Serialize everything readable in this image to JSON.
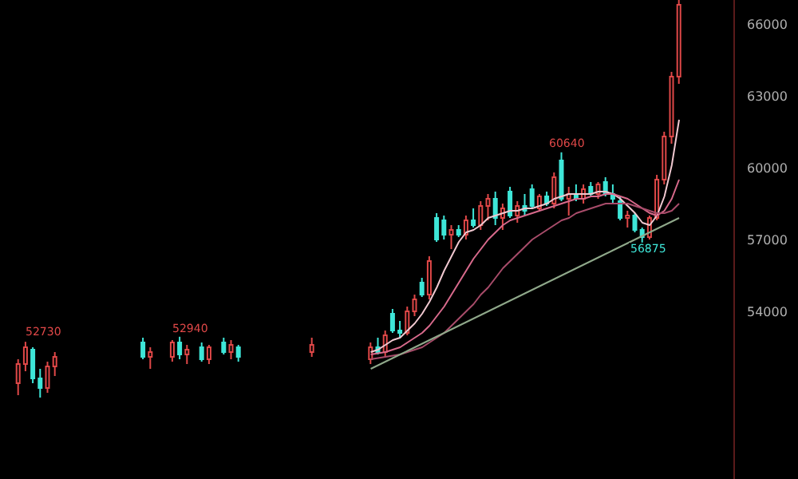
{
  "chart_data": {
    "type": "candlestick",
    "categories": [
      null,
      null,
      null,
      null,
      null,
      null,
      null,
      null,
      null,
      null,
      null,
      null,
      null,
      null,
      null,
      null,
      null,
      null,
      null,
      null,
      null,
      null,
      null,
      null,
      null,
      null,
      null,
      null,
      null,
      null,
      null,
      null,
      null,
      null,
      null,
      null,
      null,
      null,
      null,
      null,
      null,
      null,
      null,
      null,
      null,
      null,
      null,
      null,
      null,
      null,
      null,
      null,
      null,
      null,
      null,
      null,
      null,
      null,
      null,
      null,
      null,
      null,
      null,
      null,
      null,
      null,
      null,
      null,
      null,
      null,
      null,
      null,
      null,
      null,
      null,
      null,
      null,
      null,
      null,
      null,
      null,
      null,
      null,
      null,
      null,
      null,
      null,
      null,
      null,
      null,
      null,
      null,
      null,
      null,
      null,
      null,
      null,
      null,
      null,
      null
    ],
    "ohlc": [
      null,
      null,
      [
        51000,
        52000,
        50500,
        51800
      ],
      [
        51800,
        52730,
        51500,
        52500
      ],
      [
        52400,
        52500,
        51000,
        51200
      ],
      [
        51200,
        51600,
        50400,
        50800
      ],
      [
        50800,
        51900,
        50600,
        51700
      ],
      [
        51700,
        52300,
        51300,
        52100
      ],
      null,
      null,
      null,
      null,
      null,
      null,
      null,
      null,
      null,
      null,
      null,
      [
        52700,
        52900,
        52000,
        52100
      ],
      [
        52100,
        52500,
        51600,
        52300
      ],
      null,
      null,
      [
        52100,
        52800,
        51900,
        52700
      ],
      [
        52700,
        52940,
        52000,
        52200
      ],
      [
        52200,
        52600,
        51800,
        52400
      ],
      null,
      [
        52500,
        52700,
        51900,
        52000
      ],
      [
        52000,
        52600,
        51800,
        52500
      ],
      null,
      [
        52700,
        52900,
        52200,
        52300
      ],
      [
        52300,
        52800,
        52000,
        52600
      ],
      [
        52500,
        52600,
        51900,
        52100
      ],
      null,
      null,
      null,
      null,
      null,
      null,
      null,
      null,
      null,
      [
        52300,
        52900,
        52100,
        52600
      ],
      null,
      null,
      null,
      null,
      null,
      null,
      null,
      [
        52000,
        52700,
        51800,
        52500
      ],
      [
        52500,
        52900,
        52200,
        52300
      ],
      [
        52300,
        53200,
        52100,
        53000
      ],
      [
        53900,
        54100,
        53100,
        53200
      ],
      [
        53200,
        53600,
        52900,
        53100
      ],
      [
        53100,
        54200,
        53000,
        54000
      ],
      [
        54000,
        54700,
        53800,
        54500
      ],
      [
        55200,
        55400,
        54600,
        54700
      ],
      [
        54700,
        56300,
        54500,
        56100
      ],
      [
        57900,
        58100,
        56900,
        57000
      ],
      [
        57800,
        58000,
        57000,
        57200
      ],
      [
        57200,
        57600,
        56600,
        57400
      ],
      [
        57400,
        57600,
        57100,
        57200
      ],
      [
        57200,
        58000,
        57000,
        57800
      ],
      [
        57800,
        58300,
        57500,
        57600
      ],
      [
        57600,
        58600,
        57400,
        58400
      ],
      [
        58400,
        58900,
        57800,
        58700
      ],
      [
        58700,
        59000,
        57600,
        57900
      ],
      [
        57900,
        58500,
        57400,
        58300
      ],
      [
        59000,
        59200,
        57900,
        58000
      ],
      [
        58000,
        58600,
        57700,
        58400
      ],
      [
        58400,
        58900,
        58000,
        58200
      ],
      [
        59100,
        59300,
        58300,
        58400
      ],
      [
        58300,
        58900,
        58200,
        58800
      ],
      [
        58800,
        59000,
        58400,
        58500
      ],
      [
        58500,
        59800,
        58300,
        59600
      ],
      [
        60300,
        60640,
        58600,
        58700
      ],
      [
        58700,
        59200,
        58000,
        58900
      ],
      [
        58900,
        59300,
        58600,
        58700
      ],
      [
        58700,
        59300,
        58500,
        59100
      ],
      [
        59200,
        59400,
        58800,
        58900
      ],
      [
        58900,
        59400,
        58700,
        59300
      ],
      [
        59400,
        59600,
        58800,
        58900
      ],
      [
        58900,
        59300,
        58500,
        58700
      ],
      [
        58600,
        58800,
        57800,
        57900
      ],
      [
        57900,
        58200,
        57500,
        58000
      ],
      [
        58000,
        58100,
        57300,
        57400
      ],
      [
        57400,
        57500,
        56875,
        57100
      ],
      [
        57100,
        58000,
        57000,
        57900
      ],
      [
        57900,
        59700,
        57800,
        59500
      ],
      [
        59500,
        61500,
        59300,
        61300
      ],
      [
        61300,
        64000,
        61000,
        63800
      ],
      [
        63800,
        67000,
        63500,
        66800
      ],
      null,
      null,
      null,
      null,
      null,
      null,
      null
    ],
    "colors": [
      null,
      null,
      "#e04848",
      "#e04848",
      "#3ee6d8",
      "#3ee6d8",
      "#e04848",
      "#e04848",
      null,
      null,
      null,
      null,
      null,
      null,
      null,
      null,
      null,
      null,
      null,
      "#3ee6d8",
      "#e04848",
      null,
      null,
      "#e04848",
      "#3ee6d8",
      "#e04848",
      null,
      "#3ee6d8",
      "#e04848",
      null,
      "#3ee6d8",
      "#e04848",
      "#3ee6d8",
      null,
      null,
      null,
      null,
      null,
      null,
      null,
      null,
      null,
      "#e04848",
      null,
      null,
      null,
      null,
      null,
      null,
      null,
      "#e04848",
      "#3ee6d8",
      "#e04848",
      "#3ee6d8",
      "#3ee6d8",
      "#e04848",
      "#e04848",
      "#3ee6d8",
      "#e04848",
      "#3ee6d8",
      "#3ee6d8",
      "#e04848",
      "#3ee6d8",
      "#e04848",
      "#3ee6d8",
      "#e04848",
      "#e04848",
      "#3ee6d8",
      "#e04848",
      "#3ee6d8",
      "#e04848",
      "#3ee6d8",
      "#3ee6d8",
      "#e04848",
      "#3ee6d8",
      "#e04848",
      "#3ee6d8",
      "#e04848",
      "#3ee6d8",
      "#e04848",
      "#3ee6d8",
      "#e04848",
      "#3ee6d8",
      "#3ee6d8",
      "#3ee6d8",
      "#e04848",
      "#3ee6d8",
      "#3ee6d8",
      "#e04848",
      "#e04848",
      "#e04848",
      "#e04848",
      "#e04848",
      null,
      null,
      null,
      null,
      null,
      null,
      null
    ],
    "series": [
      {
        "type": "line",
        "color": "#f0c8d0",
        "values": [
          null,
          null,
          null,
          null,
          null,
          null,
          null,
          null,
          null,
          null,
          null,
          null,
          null,
          null,
          null,
          null,
          null,
          null,
          null,
          null,
          null,
          null,
          null,
          null,
          null,
          null,
          null,
          null,
          null,
          null,
          null,
          null,
          null,
          null,
          null,
          null,
          null,
          null,
          null,
          null,
          null,
          null,
          null,
          null,
          null,
          null,
          null,
          null,
          null,
          null,
          52300,
          52400,
          52600,
          52800,
          52900,
          53200,
          53500,
          53900,
          54400,
          55000,
          55700,
          56300,
          56900,
          57300,
          57400,
          57600,
          57900,
          58000,
          58100,
          58200,
          58200,
          58300,
          58300,
          58400,
          58500,
          58700,
          58800,
          58900,
          58900,
          58900,
          58900,
          59000,
          59000,
          58900,
          58700,
          58400,
          58100,
          57700,
          57600,
          58000,
          58800,
          60100,
          62000,
          null,
          null,
          null,
          null,
          null,
          null,
          null
        ]
      },
      {
        "type": "line",
        "color": "#d86a8c",
        "values": [
          null,
          null,
          null,
          null,
          null,
          null,
          null,
          null,
          null,
          null,
          null,
          null,
          null,
          null,
          null,
          null,
          null,
          null,
          null,
          null,
          null,
          null,
          null,
          null,
          null,
          null,
          null,
          null,
          null,
          null,
          null,
          null,
          null,
          null,
          null,
          null,
          null,
          null,
          null,
          null,
          null,
          null,
          null,
          null,
          null,
          null,
          null,
          null,
          null,
          null,
          52200,
          52250,
          52300,
          52400,
          52500,
          52700,
          52900,
          53100,
          53400,
          53800,
          54200,
          54700,
          55200,
          55700,
          56200,
          56600,
          57000,
          57300,
          57600,
          57800,
          57900,
          58000,
          58100,
          58200,
          58300,
          58400,
          58500,
          58600,
          58700,
          58700,
          58800,
          58800,
          58900,
          58900,
          58800,
          58700,
          58500,
          58300,
          58100,
          58000,
          58200,
          58700,
          59500,
          null,
          null,
          null,
          null,
          null,
          null,
          null
        ]
      },
      {
        "type": "line",
        "color": "#a84c6a",
        "values": [
          null,
          null,
          null,
          null,
          null,
          null,
          null,
          null,
          null,
          null,
          null,
          null,
          null,
          null,
          null,
          null,
          null,
          null,
          null,
          null,
          null,
          null,
          null,
          null,
          null,
          null,
          null,
          null,
          null,
          null,
          null,
          null,
          null,
          null,
          null,
          null,
          null,
          null,
          null,
          null,
          null,
          null,
          null,
          null,
          null,
          null,
          null,
          null,
          null,
          null,
          52000,
          52050,
          52100,
          52150,
          52200,
          52300,
          52400,
          52500,
          52700,
          52900,
          53100,
          53400,
          53700,
          54000,
          54300,
          54700,
          55000,
          55400,
          55800,
          56100,
          56400,
          56700,
          57000,
          57200,
          57400,
          57600,
          57800,
          57900,
          58100,
          58200,
          58300,
          58400,
          58500,
          58500,
          58500,
          58500,
          58400,
          58300,
          58200,
          58100,
          58100,
          58200,
          58500,
          null,
          null,
          null,
          null,
          null,
          null,
          null
        ]
      },
      {
        "type": "line",
        "color": "#8fa88a",
        "values": [
          null,
          null,
          null,
          null,
          null,
          null,
          null,
          null,
          null,
          null,
          null,
          null,
          null,
          null,
          null,
          null,
          null,
          null,
          null,
          null,
          null,
          null,
          null,
          null,
          null,
          null,
          null,
          null,
          null,
          null,
          null,
          null,
          null,
          null,
          null,
          null,
          null,
          null,
          null,
          null,
          null,
          null,
          null,
          null,
          null,
          null,
          null,
          null,
          null,
          null,
          51600,
          51750,
          51900,
          52050,
          52200,
          52350,
          52500,
          52650,
          52800,
          52950,
          53100,
          53250,
          53400,
          53550,
          53700,
          53850,
          54000,
          54150,
          54300,
          54450,
          54600,
          54750,
          54900,
          55050,
          55200,
          55350,
          55500,
          55650,
          55800,
          55950,
          56100,
          56250,
          56400,
          56550,
          56700,
          56850,
          57000,
          57150,
          57300,
          57450,
          57600,
          57750,
          57900,
          null,
          null,
          null,
          null,
          null,
          null,
          null
        ]
      }
    ],
    "ylim": [
      47000,
      67000
    ],
    "yticks": [
      54000,
      57000,
      60000,
      63000,
      66000
    ],
    "tick_labels": "y",
    "annotations": [
      "52730",
      "52940",
      "60640",
      "56875"
    ]
  }
}
